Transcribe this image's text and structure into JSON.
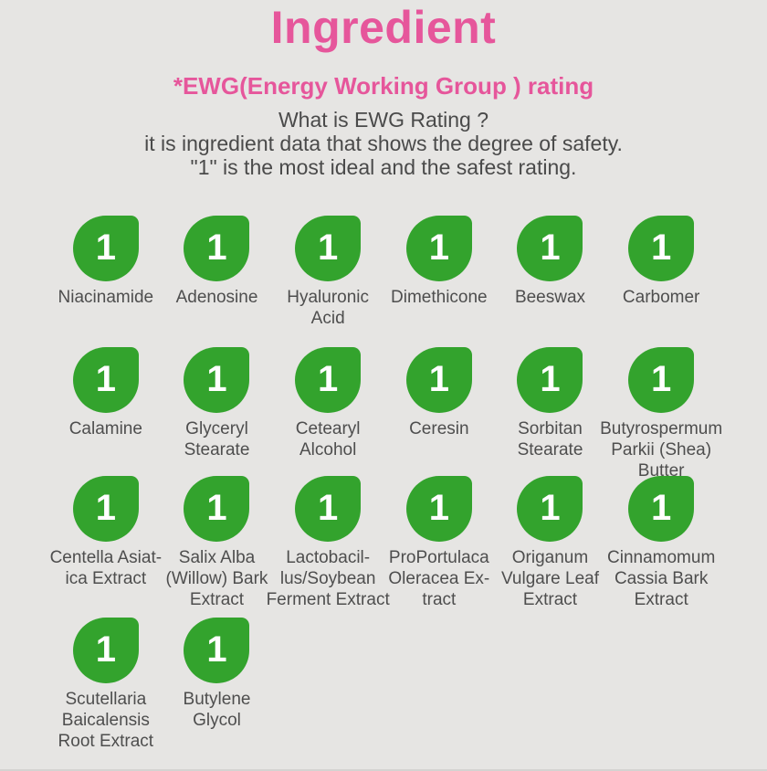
{
  "header": {
    "title": "Ingredient",
    "subtitle": "*EWG(Energy Working Group ) rating",
    "description": [
      "What is EWG Rating ?",
      "it is ingredient data that shows the degree of safety.",
      "\"1\" is the most ideal and the safest rating."
    ]
  },
  "colors": {
    "accent_pink": "#e6569b",
    "rating_green": "#33a32d",
    "background_gray": "#e6e5e3",
    "text_gray": "#4a4a4a"
  },
  "ingredients": [
    {
      "name": "Niacinamide",
      "rating": "1"
    },
    {
      "name": "Adenosine",
      "rating": "1"
    },
    {
      "name": "Hyaluronic\nAcid",
      "rating": "1"
    },
    {
      "name": "Dimethicone",
      "rating": "1"
    },
    {
      "name": "Beeswax",
      "rating": "1"
    },
    {
      "name": "Carbomer",
      "rating": "1"
    },
    {
      "name": "Calamine",
      "rating": "1"
    },
    {
      "name": "Glyceryl\nStearate",
      "rating": "1"
    },
    {
      "name": "Cetearyl\nAlcohol",
      "rating": "1"
    },
    {
      "name": "Ceresin",
      "rating": "1"
    },
    {
      "name": "Sorbitan\nStearate",
      "rating": "1"
    },
    {
      "name": "Butyrospermum\nParkii (Shea)\nButter",
      "rating": "1"
    },
    {
      "name": "Centella Asiat-\nica Extract",
      "rating": "1"
    },
    {
      "name": "Salix Alba\n(Willow) Bark\nExtract",
      "rating": "1"
    },
    {
      "name": "Lactobacil-\nlus/Soybean\nFerment Extract",
      "rating": "1"
    },
    {
      "name": "ProPortulaca\nOleracea Ex-\ntract",
      "rating": "1"
    },
    {
      "name": "Origanum\nVulgare Leaf\nExtract",
      "rating": "1"
    },
    {
      "name": "Cinnamomum\nCassia Bark\nExtract",
      "rating": "1"
    },
    {
      "name": "Scutellaria\nBaicalensis\nRoot Extract",
      "rating": "1"
    },
    {
      "name": "Butylene\nGlycol",
      "rating": "1"
    }
  ]
}
